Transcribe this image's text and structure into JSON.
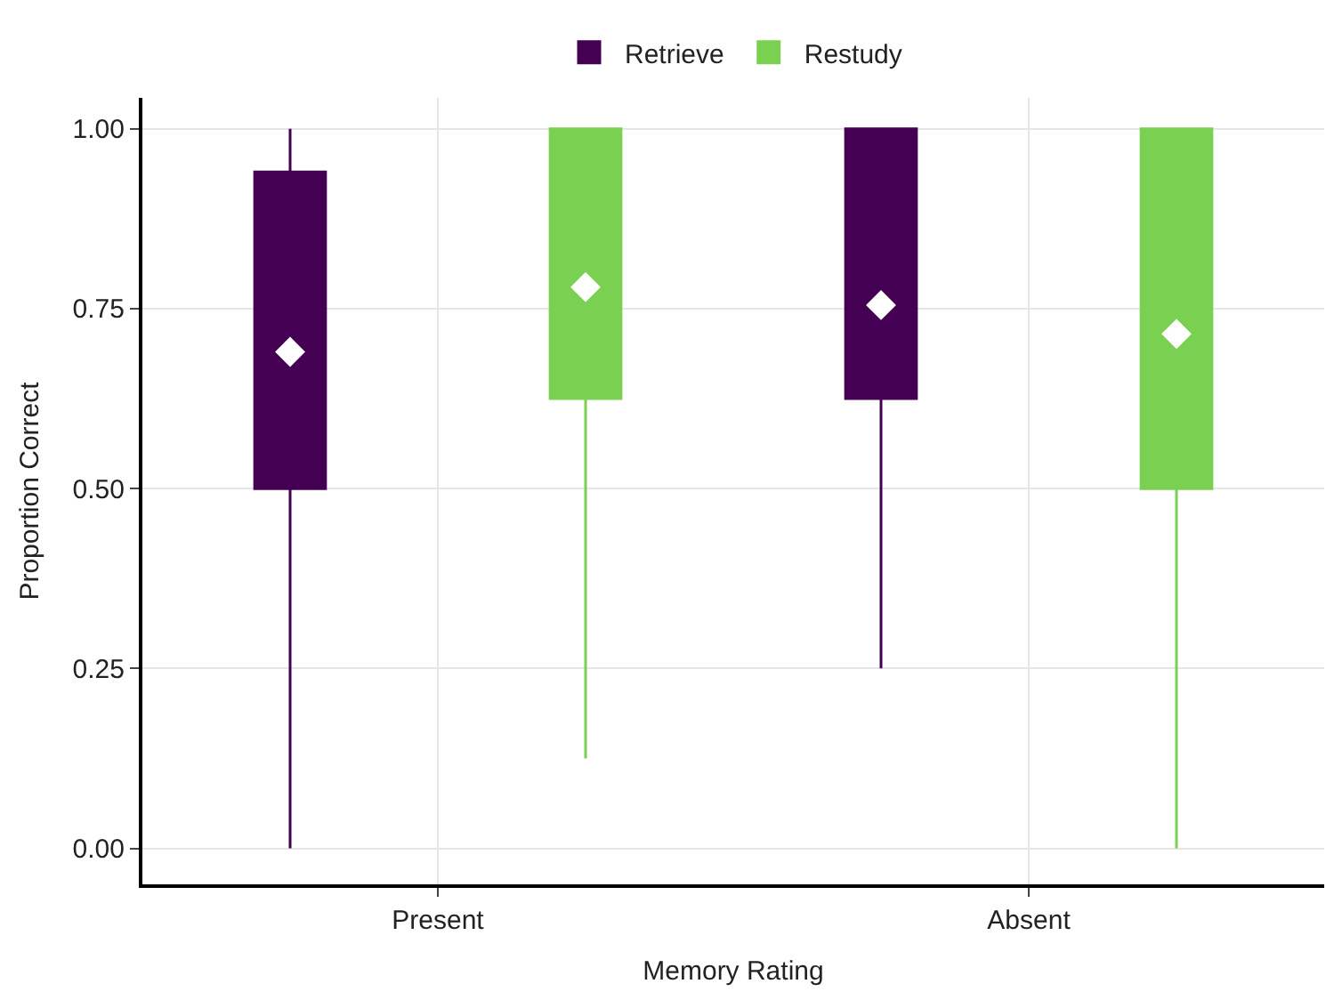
{
  "chart_data": {
    "type": "box",
    "xlabel": "Memory Rating",
    "ylabel": "Proportion Correct",
    "categories": [
      "Present",
      "Absent"
    ],
    "series": [
      {
        "name": "Retrieve",
        "color": "#440154",
        "boxes": [
          {
            "low": 0,
            "q1": 0.5,
            "median": 0.75,
            "q3": 0.94,
            "high": 1,
            "mean": 0.69
          },
          {
            "low": 0.25,
            "q1": 0.625,
            "median": 0.75,
            "q3": 1,
            "high": 1,
            "mean": 0.755
          }
        ]
      },
      {
        "name": "Restudy",
        "color": "#7ad151",
        "boxes": [
          {
            "low": 0.125,
            "q1": 0.625,
            "median": 0.75,
            "q3": 1,
            "high": 1,
            "mean": 0.78
          },
          {
            "low": 0,
            "q1": 0.5,
            "median": 0.75,
            "q3": 1,
            "high": 1,
            "mean": 0.715
          }
        ]
      }
    ],
    "ylim": [
      -0.05,
      1.043
    ],
    "yticks": [
      {
        "value": 0,
        "label": "0.00"
      },
      {
        "value": 0.25,
        "label": "0.25"
      },
      {
        "value": 0.5,
        "label": "0.50"
      },
      {
        "value": 0.75,
        "label": "0.75"
      },
      {
        "value": 1,
        "label": "1.00"
      }
    ],
    "grid": true,
    "legend": "top",
    "marker": "diamond"
  }
}
